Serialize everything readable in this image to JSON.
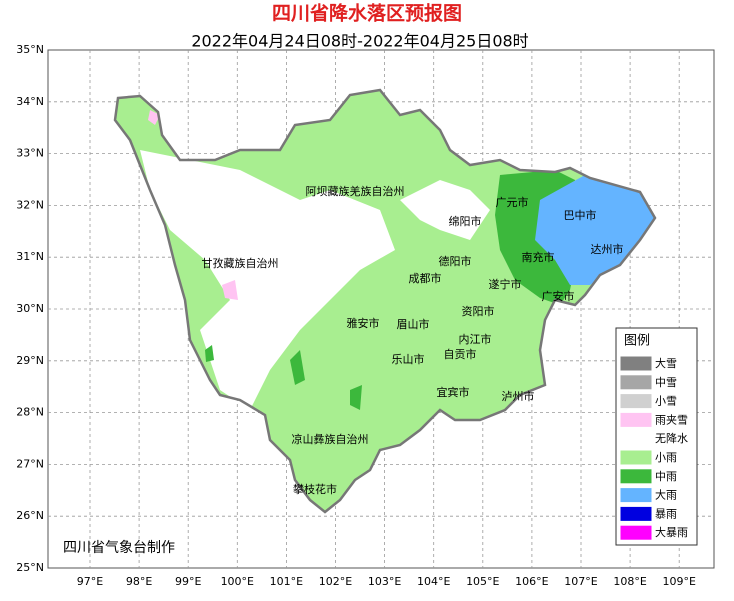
{
  "header": {
    "title": "四川省降水落区预报图",
    "subtitle": "2022年04月24日08时-2022年04月25日08时"
  },
  "axes": {
    "lat_labels": [
      "35°N",
      "34°N",
      "33°N",
      "32°N",
      "31°N",
      "30°N",
      "29°N",
      "28°N",
      "27°N",
      "26°N",
      "25°N"
    ],
    "lon_labels": [
      "97°E",
      "98°E",
      "99°E",
      "100°E",
      "101°E",
      "102°E",
      "103°E",
      "104°E",
      "105°E",
      "106°E",
      "107°E",
      "108°E",
      "109°E"
    ]
  },
  "places": [
    "阿坝藏族羌族自治州",
    "广元市",
    "巴中市",
    "绵阳市",
    "达州市",
    "甘孜藏族自治州",
    "德阳市",
    "南充市",
    "成都市",
    "遂宁市",
    "广安市",
    "资阳市",
    "雅安市",
    "眉山市",
    "内江市",
    "自贡市",
    "乐山市",
    "宜宾市",
    "泸州市",
    "凉山彝族自治州",
    "攀枝花市"
  ],
  "legend": {
    "title": "图例",
    "items": [
      {
        "label": "大雪",
        "color": "#808080"
      },
      {
        "label": "中雪",
        "color": "#a6a6a6"
      },
      {
        "label": "小雪",
        "color": "#d0d0d0"
      },
      {
        "label": "雨夹雪",
        "color": "#ffc4f2"
      },
      {
        "label": "无降水",
        "color": "#ffffff"
      },
      {
        "label": "小雨",
        "color": "#a8ee90"
      },
      {
        "label": "中雨",
        "color": "#3cb83c"
      },
      {
        "label": "大雨",
        "color": "#64b4ff"
      },
      {
        "label": "暴雨",
        "color": "#0000e0"
      },
      {
        "label": "大暴雨",
        "color": "#ff00ff"
      }
    ]
  },
  "footer": {
    "credit": "四川省气象台制作"
  }
}
